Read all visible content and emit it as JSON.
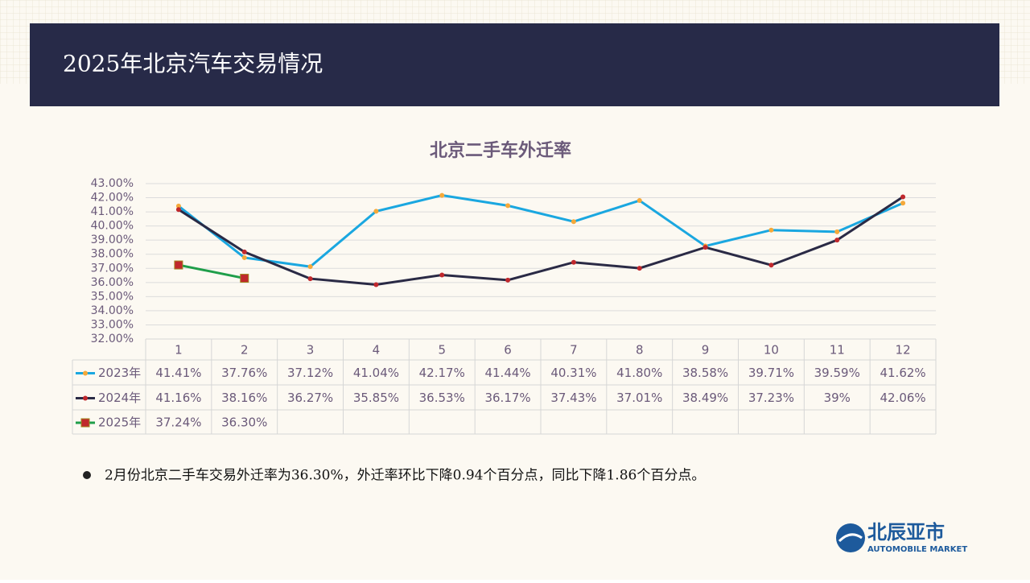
{
  "header": {
    "title": "2025年北京汽车交易情况"
  },
  "chart_data": {
    "type": "line",
    "title": "北京二手车外迁率",
    "categories": [
      "1",
      "2",
      "3",
      "4",
      "5",
      "6",
      "7",
      "8",
      "9",
      "10",
      "11",
      "12"
    ],
    "series": [
      {
        "name": "2023年",
        "color": "#1aa7e0",
        "marker_color": "#f5a93a",
        "marker": "circle",
        "values": [
          41.41,
          37.76,
          37.12,
          41.04,
          42.17,
          41.44,
          40.31,
          41.8,
          38.58,
          39.71,
          39.59,
          41.62
        ],
        "value_labels": [
          "41.41%",
          "37.76%",
          "37.12%",
          "41.04%",
          "42.17%",
          "41.44%",
          "40.31%",
          "41.80%",
          "38.58%",
          "39.71%",
          "39.59%",
          "41.62%"
        ]
      },
      {
        "name": "2024年",
        "color": "#2a2a45",
        "marker_color": "#c0282d",
        "marker": "circle",
        "values": [
          41.16,
          38.16,
          36.27,
          35.85,
          36.53,
          36.17,
          37.43,
          37.01,
          38.49,
          37.23,
          39,
          42.06
        ],
        "value_labels": [
          "41.16%",
          "38.16%",
          "36.27%",
          "35.85%",
          "36.53%",
          "36.17%",
          "37.43%",
          "37.01%",
          "38.49%",
          "37.23%",
          "39%",
          "42.06%"
        ]
      },
      {
        "name": "2025年",
        "color": "#1f9e4a",
        "marker_color": "#c0282d",
        "marker": "square",
        "values": [
          37.24,
          36.3,
          null,
          null,
          null,
          null,
          null,
          null,
          null,
          null,
          null,
          null
        ],
        "value_labels": [
          "37.24%",
          "36.30%",
          null,
          null,
          null,
          null,
          null,
          null,
          null,
          null,
          null,
          null
        ]
      }
    ],
    "ylim": [
      32,
      43
    ],
    "yticks": [
      {
        "value": 32,
        "label": "32.00%"
      },
      {
        "value": 33,
        "label": "33.00%"
      },
      {
        "value": 34,
        "label": "34.00%"
      },
      {
        "value": 35,
        "label": "35.00%"
      },
      {
        "value": 36,
        "label": "36.00%"
      },
      {
        "value": 37,
        "label": "37.00%"
      },
      {
        "value": 38,
        "label": "38.00%"
      },
      {
        "value": 39,
        "label": "39.00%"
      },
      {
        "value": 40,
        "label": "40.00%"
      },
      {
        "value": 41,
        "label": "41.00%"
      },
      {
        "value": 42,
        "label": "42.00%"
      },
      {
        "value": 43,
        "label": "43.00%"
      }
    ],
    "grid": true
  },
  "note": "2月份北京二手车交易外迁率为36.30%，外迁率环比下降0.94个百分点，同比下降1.86个百分点。",
  "logo": {
    "name": "北辰亚市",
    "subtitle": "AUTOMOBILE MARKET"
  }
}
